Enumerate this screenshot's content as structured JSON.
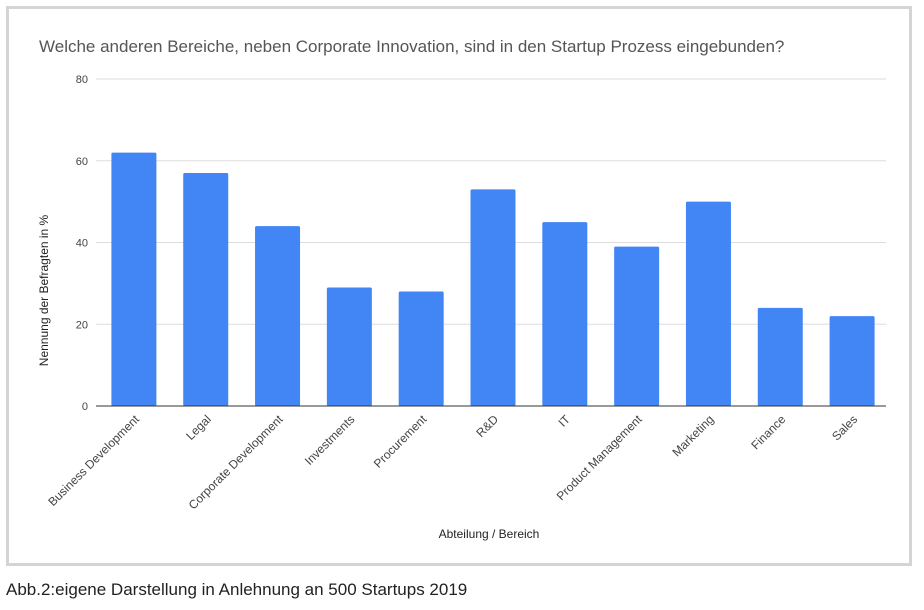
{
  "chart_data": {
    "type": "bar",
    "title": "Welche anderen Bereiche, neben Corporate Innovation, sind in den Startup Prozess eingebunden?",
    "xlabel": "Abteilung / Bereich",
    "ylabel": "Nennung der Befragten in %",
    "ylim": [
      0,
      80
    ],
    "yticks": [
      0,
      20,
      40,
      60,
      80
    ],
    "grid": true,
    "categories": [
      "Business Development",
      "Legal",
      "Corporate Development",
      "Investments",
      "Procurement",
      "R&D",
      "IT",
      "Product Management",
      "Marketing",
      "Finance",
      "Sales"
    ],
    "values": [
      62,
      57,
      44,
      29,
      28,
      53,
      45,
      39,
      50,
      24,
      22
    ],
    "bar_color": "#4285f4"
  },
  "caption": "Abb.2:eigene Darstellung in Anlehnung an 500 Startups 2019"
}
